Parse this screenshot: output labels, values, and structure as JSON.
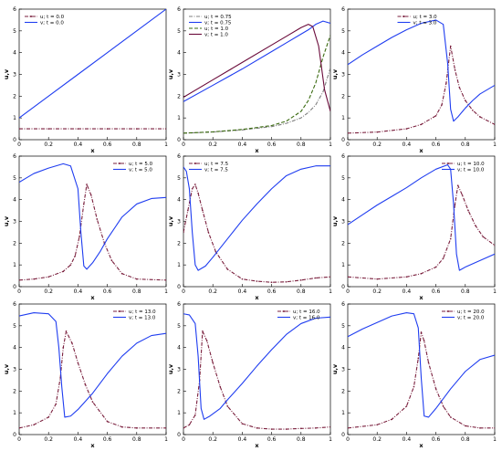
{
  "chart_data": [
    {
      "type": "line",
      "xlabel": "x",
      "ylabel": "u,v",
      "xlim": [
        0,
        1
      ],
      "ylim": [
        0,
        6
      ],
      "xticks": [
        "0",
        "0.2",
        "0.4",
        "0.6",
        "0.8",
        "1"
      ],
      "yticks": [
        "0",
        "1",
        "2",
        "3",
        "4",
        "5",
        "6"
      ],
      "legend_position": "top-left",
      "series": [
        {
          "name": "u; t = 0.0",
          "color": "#7a1f3d",
          "style": "dashdot-marker",
          "x": [
            0,
            0.2,
            0.4,
            0.6,
            0.8,
            1.0
          ],
          "y": [
            0.5,
            0.5,
            0.5,
            0.5,
            0.5,
            0.5
          ]
        },
        {
          "name": "v; t = 0.0",
          "color": "#1f3df0",
          "style": "solid",
          "x": [
            0,
            0.2,
            0.4,
            0.6,
            0.8,
            1.0
          ],
          "y": [
            1.0,
            2.0,
            3.0,
            4.0,
            5.0,
            6.0
          ]
        }
      ]
    },
    {
      "type": "line",
      "xlabel": "x",
      "ylabel": "u,v",
      "xlim": [
        0,
        1
      ],
      "ylim": [
        0,
        6
      ],
      "xticks": [
        "0",
        "0.2",
        "0.4",
        "0.6",
        "0.8",
        "1"
      ],
      "yticks": [
        "0",
        "1",
        "2",
        "3",
        "4",
        "5",
        "6"
      ],
      "legend_position": "top-left",
      "series": [
        {
          "name": "u; t = 0.75",
          "color": "#7f7f7f",
          "style": "dashdot",
          "x": [
            0,
            0.2,
            0.4,
            0.6,
            0.7,
            0.8,
            0.85,
            0.9,
            0.95,
            1.0
          ],
          "y": [
            0.3,
            0.35,
            0.45,
            0.6,
            0.75,
            1.0,
            1.25,
            1.6,
            2.2,
            3.3
          ]
        },
        {
          "name": "v; t = 0.75",
          "color": "#1f3df0",
          "style": "solid",
          "x": [
            0,
            0.2,
            0.4,
            0.6,
            0.7,
            0.8,
            0.85,
            0.9,
            0.95,
            1.0
          ],
          "y": [
            1.75,
            2.5,
            3.25,
            4.05,
            4.45,
            4.85,
            5.05,
            5.3,
            5.45,
            5.35
          ]
        },
        {
          "name": "u; t = 1.0",
          "color": "#3a6a10",
          "style": "dashed",
          "x": [
            0,
            0.2,
            0.4,
            0.6,
            0.7,
            0.8,
            0.85,
            0.9,
            0.95,
            1.0
          ],
          "y": [
            0.3,
            0.36,
            0.47,
            0.65,
            0.85,
            1.3,
            1.8,
            2.6,
            3.8,
            4.8
          ]
        },
        {
          "name": "v; t = 1.0",
          "color": "#6a0a3a",
          "style": "solid",
          "x": [
            0,
            0.2,
            0.4,
            0.6,
            0.7,
            0.8,
            0.85,
            0.88,
            0.92,
            0.96,
            1.0
          ],
          "y": [
            1.95,
            2.75,
            3.55,
            4.35,
            4.75,
            5.15,
            5.3,
            5.2,
            4.3,
            2.3,
            1.3
          ]
        }
      ]
    },
    {
      "type": "line",
      "xlabel": "x",
      "ylabel": "u,v",
      "xlim": [
        0,
        1
      ],
      "ylim": [
        0,
        6
      ],
      "xticks": [
        "0",
        "0.2",
        "0.4",
        "0.6",
        "0.8",
        "1"
      ],
      "yticks": [
        "0",
        "1",
        "2",
        "3",
        "4",
        "5",
        "6"
      ],
      "legend_position": "top-center",
      "series": [
        {
          "name": "u; t = 3.0",
          "color": "#7a1f3d",
          "style": "dashdot-marker",
          "x": [
            0,
            0.2,
            0.4,
            0.5,
            0.6,
            0.64,
            0.67,
            0.7,
            0.73,
            0.76,
            0.8,
            0.85,
            0.9,
            1.0
          ],
          "y": [
            0.3,
            0.35,
            0.5,
            0.7,
            1.1,
            1.6,
            2.6,
            4.3,
            3.2,
            2.4,
            1.8,
            1.35,
            1.05,
            0.7
          ]
        },
        {
          "name": "v; t = 3.0",
          "color": "#1f3df0",
          "style": "solid",
          "x": [
            0,
            0.1,
            0.2,
            0.3,
            0.4,
            0.5,
            0.6,
            0.65,
            0.68,
            0.7,
            0.72,
            0.75,
            0.8,
            0.85,
            0.9,
            1.0
          ],
          "y": [
            3.45,
            3.9,
            4.3,
            4.7,
            5.05,
            5.35,
            5.5,
            5.3,
            3.5,
            1.4,
            0.85,
            1.05,
            1.45,
            1.8,
            2.1,
            2.5
          ]
        }
      ]
    },
    {
      "type": "line",
      "xlabel": "x",
      "ylabel": "u,v",
      "xlim": [
        0,
        1
      ],
      "ylim": [
        0,
        6
      ],
      "xticks": [
        "0",
        "0.2",
        "0.4",
        "0.6",
        "0.8",
        "1"
      ],
      "yticks": [
        "0",
        "1",
        "2",
        "3",
        "4",
        "5",
        "6"
      ],
      "legend_position": "top-right",
      "series": [
        {
          "name": "u; t = 5.0",
          "color": "#7a1f3d",
          "style": "dashdot-marker",
          "x": [
            0,
            0.1,
            0.2,
            0.3,
            0.35,
            0.38,
            0.41,
            0.44,
            0.46,
            0.49,
            0.53,
            0.58,
            0.63,
            0.7,
            0.8,
            1.0
          ],
          "y": [
            0.3,
            0.35,
            0.45,
            0.7,
            1.0,
            1.4,
            2.3,
            3.8,
            4.7,
            4.2,
            3.1,
            2.0,
            1.2,
            0.6,
            0.35,
            0.3
          ]
        },
        {
          "name": "v; t = 5.0",
          "color": "#1f3df0",
          "style": "solid",
          "x": [
            0,
            0.05,
            0.1,
            0.2,
            0.3,
            0.35,
            0.4,
            0.42,
            0.44,
            0.46,
            0.5,
            0.55,
            0.6,
            0.7,
            0.8,
            0.9,
            1.0
          ],
          "y": [
            4.8,
            5.0,
            5.2,
            5.45,
            5.65,
            5.55,
            4.5,
            2.5,
            0.95,
            0.8,
            1.1,
            1.6,
            2.2,
            3.2,
            3.8,
            4.05,
            4.1
          ]
        }
      ]
    },
    {
      "type": "line",
      "xlabel": "x",
      "ylabel": "u,v",
      "xlim": [
        0,
        1
      ],
      "ylim": [
        0,
        6
      ],
      "xticks": [
        "0",
        "0.2",
        "0.4",
        "0.6",
        "0.8",
        "1"
      ],
      "yticks": [
        "0",
        "1",
        "2",
        "3",
        "4",
        "5",
        "6"
      ],
      "legend_position": "top-left",
      "series": [
        {
          "name": "u; t = 7.5",
          "color": "#7a1f3d",
          "style": "dashdot-marker",
          "x": [
            0,
            0.03,
            0.06,
            0.08,
            0.1,
            0.13,
            0.17,
            0.22,
            0.3,
            0.4,
            0.5,
            0.6,
            0.7,
            0.8,
            0.9,
            1.0
          ],
          "y": [
            2.5,
            3.5,
            4.5,
            4.7,
            4.3,
            3.5,
            2.5,
            1.6,
            0.8,
            0.35,
            0.25,
            0.2,
            0.22,
            0.3,
            0.4,
            0.45
          ]
        },
        {
          "name": "v; t = 7.5",
          "color": "#1f3df0",
          "style": "solid",
          "x": [
            0,
            0.02,
            0.04,
            0.06,
            0.08,
            0.1,
            0.15,
            0.2,
            0.3,
            0.4,
            0.5,
            0.6,
            0.7,
            0.8,
            0.9,
            1.0
          ],
          "y": [
            5.5,
            5.3,
            4.5,
            2.5,
            1.0,
            0.75,
            0.95,
            1.35,
            2.2,
            3.05,
            3.8,
            4.5,
            5.1,
            5.4,
            5.55,
            5.55
          ]
        }
      ]
    },
    {
      "type": "line",
      "xlabel": "x",
      "ylabel": "u,v",
      "xlim": [
        0,
        1
      ],
      "ylim": [
        0,
        6
      ],
      "xticks": [
        "0",
        "0.2",
        "0.4",
        "0.6",
        "0.8",
        "1"
      ],
      "yticks": [
        "0",
        "1",
        "2",
        "3",
        "4",
        "5",
        "6"
      ],
      "legend_position": "top-right",
      "series": [
        {
          "name": "u; t = 10.0",
          "color": "#7a1f3d",
          "style": "dashdot-marker",
          "x": [
            0,
            0.2,
            0.4,
            0.5,
            0.6,
            0.65,
            0.7,
            0.73,
            0.75,
            0.78,
            0.82,
            0.87,
            0.92,
            1.0
          ],
          "y": [
            0.45,
            0.35,
            0.45,
            0.6,
            0.9,
            1.3,
            2.2,
            3.8,
            4.65,
            4.2,
            3.5,
            2.8,
            2.3,
            1.9
          ]
        },
        {
          "name": "v; t = 10.0",
          "color": "#1f3df0",
          "style": "solid",
          "x": [
            0,
            0.1,
            0.2,
            0.3,
            0.4,
            0.5,
            0.6,
            0.68,
            0.7,
            0.72,
            0.74,
            0.76,
            0.8,
            0.9,
            1.0
          ],
          "y": [
            2.85,
            3.3,
            3.75,
            4.15,
            4.55,
            5.0,
            5.4,
            5.6,
            5.4,
            3.8,
            1.5,
            0.75,
            0.9,
            1.2,
            1.5
          ]
        }
      ]
    },
    {
      "type": "line",
      "xlabel": "x",
      "ylabel": "u,v",
      "xlim": [
        0,
        1
      ],
      "ylim": [
        0,
        6
      ],
      "xticks": [
        "0",
        "0.2",
        "0.4",
        "0.6",
        "0.8",
        "1"
      ],
      "yticks": [
        "0",
        "1",
        "2",
        "3",
        "4",
        "5",
        "6"
      ],
      "legend_position": "top-right",
      "series": [
        {
          "name": "u; t = 13.0",
          "color": "#7a1f3d",
          "style": "dashdot-marker",
          "x": [
            0,
            0.1,
            0.2,
            0.25,
            0.28,
            0.3,
            0.32,
            0.36,
            0.4,
            0.45,
            0.5,
            0.6,
            0.7,
            0.8,
            1.0
          ],
          "y": [
            0.3,
            0.45,
            0.8,
            1.4,
            2.6,
            4.0,
            4.75,
            4.2,
            3.3,
            2.3,
            1.5,
            0.6,
            0.35,
            0.3,
            0.3
          ]
        },
        {
          "name": "v; t = 13.0",
          "color": "#1f3df0",
          "style": "solid",
          "x": [
            0,
            0.1,
            0.2,
            0.25,
            0.27,
            0.29,
            0.31,
            0.35,
            0.4,
            0.5,
            0.6,
            0.7,
            0.8,
            0.9,
            1.0
          ],
          "y": [
            5.45,
            5.6,
            5.55,
            5.2,
            4.0,
            2.2,
            0.8,
            0.85,
            1.15,
            1.9,
            2.8,
            3.6,
            4.2,
            4.55,
            4.65
          ]
        }
      ]
    },
    {
      "type": "line",
      "xlabel": "x",
      "ylabel": "u,v",
      "xlim": [
        0,
        1
      ],
      "ylim": [
        0,
        6
      ],
      "xticks": [
        "0",
        "0.2",
        "0.4",
        "0.6",
        "0.8",
        "1"
      ],
      "yticks": [
        "0",
        "1",
        "2",
        "3",
        "4",
        "5",
        "6"
      ],
      "legend_position": "top-right",
      "series": [
        {
          "name": "u; t = 16.0",
          "color": "#7a1f3d",
          "style": "dashdot-marker",
          "x": [
            0,
            0.04,
            0.08,
            0.11,
            0.13,
            0.16,
            0.2,
            0.25,
            0.3,
            0.4,
            0.5,
            0.6,
            0.7,
            0.8,
            0.9,
            1.0
          ],
          "y": [
            0.3,
            0.45,
            0.9,
            2.5,
            4.75,
            4.3,
            3.3,
            2.2,
            1.3,
            0.5,
            0.3,
            0.25,
            0.25,
            0.28,
            0.3,
            0.35
          ]
        },
        {
          "name": "v; t = 16.0",
          "color": "#1f3df0",
          "style": "solid",
          "x": [
            0,
            0.04,
            0.08,
            0.1,
            0.12,
            0.14,
            0.18,
            0.25,
            0.3,
            0.4,
            0.5,
            0.6,
            0.7,
            0.8,
            0.9,
            1.0
          ],
          "y": [
            5.55,
            5.5,
            5.1,
            3.6,
            1.2,
            0.7,
            0.85,
            1.2,
            1.6,
            2.35,
            3.15,
            3.9,
            4.6,
            5.1,
            5.35,
            5.4
          ]
        }
      ]
    },
    {
      "type": "line",
      "xlabel": "x",
      "ylabel": "u,v",
      "xlim": [
        0,
        1
      ],
      "ylim": [
        0,
        6
      ],
      "xticks": [
        "0",
        "0.2",
        "0.4",
        "0.6",
        "0.8",
        "1"
      ],
      "yticks": [
        "0",
        "1",
        "2",
        "3",
        "4",
        "5",
        "6"
      ],
      "legend_position": "top-right",
      "series": [
        {
          "name": "u; t = 20.0",
          "color": "#7a1f3d",
          "style": "dashdot-marker",
          "x": [
            0,
            0.2,
            0.3,
            0.4,
            0.45,
            0.48,
            0.5,
            0.52,
            0.55,
            0.6,
            0.65,
            0.7,
            0.8,
            0.9,
            1.0
          ],
          "y": [
            0.3,
            0.45,
            0.7,
            1.3,
            2.2,
            3.5,
            4.7,
            4.3,
            3.3,
            2.1,
            1.3,
            0.8,
            0.4,
            0.3,
            0.3
          ]
        },
        {
          "name": "v; t = 20.0",
          "color": "#1f3df0",
          "style": "solid",
          "x": [
            0,
            0.1,
            0.2,
            0.3,
            0.4,
            0.45,
            0.48,
            0.5,
            0.52,
            0.55,
            0.6,
            0.7,
            0.8,
            0.9,
            1.0
          ],
          "y": [
            4.5,
            4.85,
            5.15,
            5.45,
            5.6,
            5.55,
            4.9,
            2.6,
            0.85,
            0.8,
            1.2,
            2.1,
            2.9,
            3.45,
            3.65
          ]
        }
      ]
    }
  ]
}
